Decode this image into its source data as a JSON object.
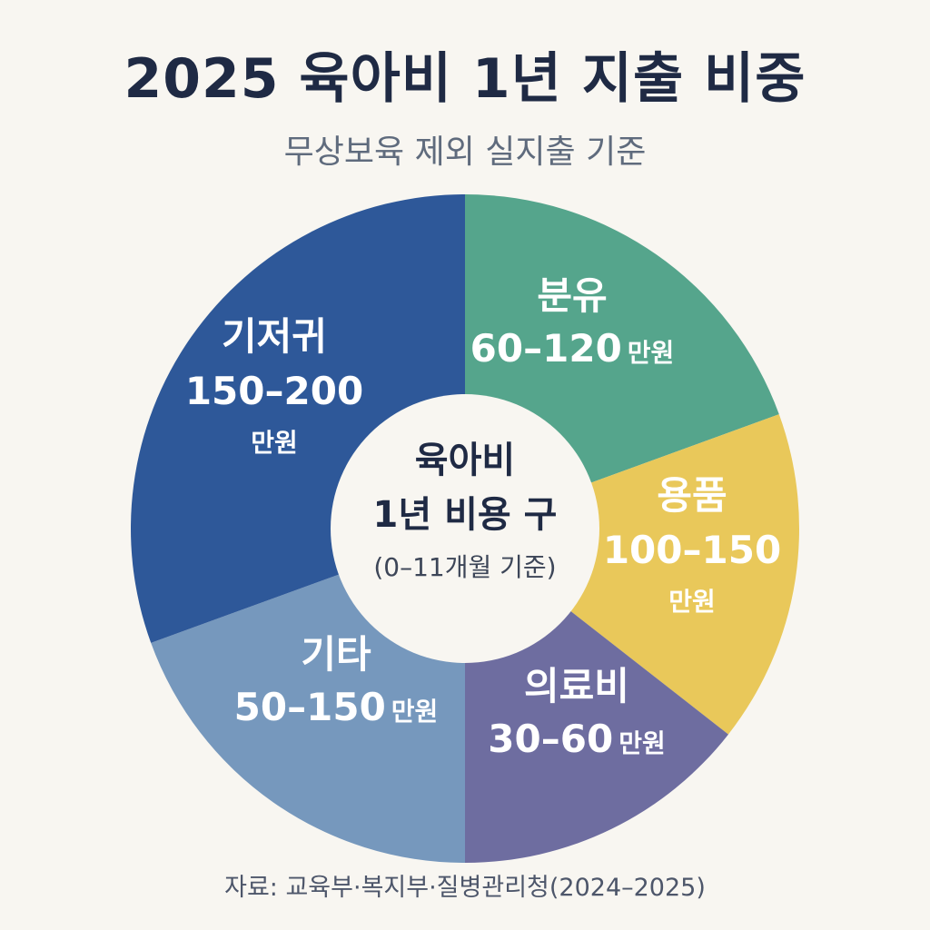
{
  "title": "2025 육아비 1년 지출 비중",
  "subtitle": "무상보육 제외 실지출 기준",
  "center": {
    "line1": "육아비",
    "line2": "1년 비용 구",
    "note": "(0–11개월 기준)"
  },
  "footer": "자료: 교육부·복지부·질병관리청(2024–2025)",
  "chart_data": {
    "type": "pie",
    "title": "2025 육아비 1년 지출 비중",
    "subtitle": "무상보육 제외 실지출 기준",
    "unit": "만원",
    "slices": [
      {
        "name": "분유",
        "label": "60–120",
        "unit": "만원",
        "range": [
          60,
          120
        ],
        "color": "#55a58c"
      },
      {
        "name": "용품",
        "label": "100–150",
        "unit": "만원",
        "range": [
          100,
          150
        ],
        "color": "#e9c85a"
      },
      {
        "name": "의료비",
        "label": "30–60",
        "unit": "만원",
        "range": [
          30,
          60
        ],
        "color": "#6e6da0"
      },
      {
        "name": "기타",
        "label": "50–150",
        "unit": "만원",
        "range": [
          50,
          150
        ],
        "color": "#7698bd"
      },
      {
        "name": "기저귀",
        "label": "150–200",
        "unit": "만원",
        "range": [
          150,
          200
        ],
        "color": "#2e5899"
      }
    ]
  }
}
